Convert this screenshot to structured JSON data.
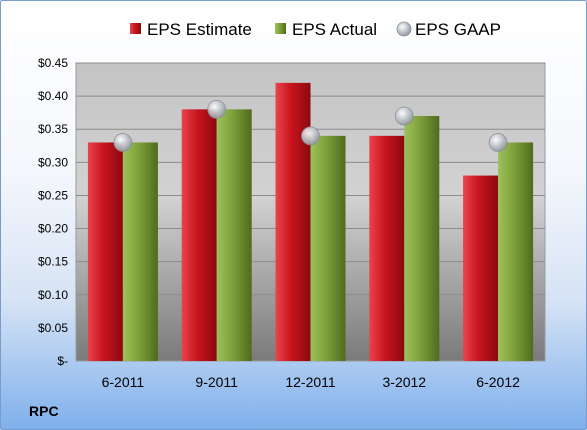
{
  "chart_data": {
    "type": "bar",
    "categories": [
      "6-2011",
      "9-2011",
      "12-2011",
      "3-2012",
      "6-2012"
    ],
    "series": [
      {
        "name": "EPS Estimate",
        "values": [
          0.33,
          0.38,
          0.42,
          0.34,
          0.28
        ],
        "color": "#c8141e",
        "kind": "bar"
      },
      {
        "name": "EPS Actual",
        "values": [
          0.33,
          0.38,
          0.34,
          0.37,
          0.33
        ],
        "color": "#7ea03a",
        "kind": "bar"
      },
      {
        "name": "EPS GAAP",
        "values": [
          0.33,
          0.38,
          0.34,
          0.37,
          0.33
        ],
        "color": "#b8bcc4",
        "kind": "marker"
      }
    ],
    "y_ticks": [
      "$-",
      "$0.05",
      "$0.10",
      "$0.15",
      "$0.20",
      "$0.25",
      "$0.30",
      "$0.35",
      "$0.40",
      "$0.45"
    ],
    "ylim": [
      0,
      0.45
    ],
    "grid": true,
    "legend_position": "top"
  },
  "company": "RPC"
}
